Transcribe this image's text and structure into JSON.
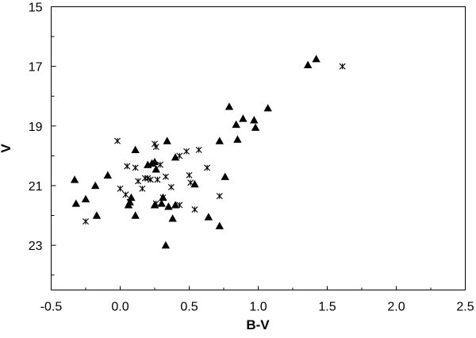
{
  "chart_data": {
    "type": "scatter",
    "title": "",
    "xlabel": "B-V",
    "ylabel": "V",
    "xlim": [
      -0.5,
      2.5
    ],
    "ylim": [
      15,
      24.5
    ],
    "y_inverted": true,
    "grid": false,
    "legend": "none",
    "x_ticks": [
      "-0.5",
      "0.0",
      "0.5",
      "1.0",
      "1.5",
      "2.0",
      "2.5"
    ],
    "x_tick_values": [
      -0.5,
      0.0,
      0.5,
      1.0,
      1.5,
      2.0,
      2.5
    ],
    "y_ticks": [
      "15",
      "17",
      "19",
      "21",
      "23"
    ],
    "y_tick_values": [
      15,
      17,
      19,
      21,
      23
    ],
    "series": [
      {
        "marker": "triangle",
        "color": "#000000",
        "points": [
          [
            -0.33,
            20.8
          ],
          [
            -0.32,
            21.6
          ],
          [
            -0.25,
            21.45
          ],
          [
            -0.18,
            21.0
          ],
          [
            -0.17,
            22.0
          ],
          [
            -0.09,
            20.65
          ],
          [
            0.06,
            21.65
          ],
          [
            0.07,
            21.55
          ],
          [
            0.08,
            21.4
          ],
          [
            0.11,
            22.0
          ],
          [
            0.11,
            19.8
          ],
          [
            0.2,
            20.3
          ],
          [
            0.23,
            20.25
          ],
          [
            0.25,
            20.2
          ],
          [
            0.26,
            20.45
          ],
          [
            0.25,
            21.65
          ],
          [
            0.3,
            21.6
          ],
          [
            0.31,
            21.4
          ],
          [
            0.33,
            23.0
          ],
          [
            0.34,
            19.5
          ],
          [
            0.35,
            21.7
          ],
          [
            0.38,
            22.1
          ],
          [
            0.4,
            21.65
          ],
          [
            0.4,
            20.05
          ],
          [
            0.54,
            20.95
          ],
          [
            0.64,
            22.05
          ],
          [
            0.72,
            22.35
          ],
          [
            0.72,
            19.5
          ],
          [
            0.76,
            20.7
          ],
          [
            0.79,
            18.35
          ],
          [
            0.84,
            18.95
          ],
          [
            0.85,
            19.45
          ],
          [
            0.89,
            18.75
          ],
          [
            0.97,
            18.8
          ],
          [
            0.98,
            19.05
          ],
          [
            1.07,
            18.4
          ],
          [
            1.36,
            16.95
          ],
          [
            1.42,
            16.75
          ]
        ]
      },
      {
        "marker": "asterisk",
        "color": "#000000",
        "points": [
          [
            -0.25,
            22.2
          ],
          [
            -0.02,
            19.5
          ],
          [
            0.0,
            21.1
          ],
          [
            0.04,
            21.3
          ],
          [
            0.05,
            20.35
          ],
          [
            0.07,
            21.55
          ],
          [
            0.11,
            20.4
          ],
          [
            0.13,
            20.85
          ],
          [
            0.16,
            21.1
          ],
          [
            0.18,
            20.75
          ],
          [
            0.2,
            20.75
          ],
          [
            0.22,
            20.8
          ],
          [
            0.25,
            19.6
          ],
          [
            0.26,
            19.7
          ],
          [
            0.26,
            21.6
          ],
          [
            0.27,
            20.8
          ],
          [
            0.29,
            20.3
          ],
          [
            0.31,
            21.4
          ],
          [
            0.33,
            20.7
          ],
          [
            0.37,
            21.05
          ],
          [
            0.43,
            20.0
          ],
          [
            0.43,
            21.65
          ],
          [
            0.48,
            19.85
          ],
          [
            0.5,
            20.65
          ],
          [
            0.51,
            20.9
          ],
          [
            0.54,
            21.8
          ],
          [
            0.57,
            19.8
          ],
          [
            0.63,
            20.4
          ],
          [
            0.72,
            21.35
          ],
          [
            1.61,
            17.0
          ]
        ]
      }
    ]
  }
}
